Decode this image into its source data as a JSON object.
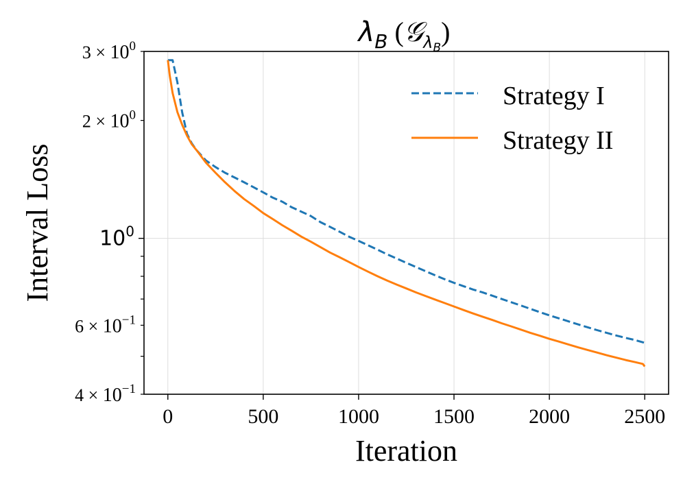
{
  "chart_data": {
    "type": "line",
    "title": "λ_B (𝒢_λB)",
    "title_parts": {
      "main": "λ",
      "main_sub": "B",
      "open": " (",
      "script": "𝒢",
      "script_sub": "λ",
      "script_subsub": "B",
      "close": ")"
    },
    "xlabel": "Iteration",
    "ylabel": "Interval Loss",
    "yscale": "log",
    "xlim": [
      -125,
      2625
    ],
    "ylim": [
      0.4,
      3.0
    ],
    "grid": true,
    "legend_position": "top-right",
    "x_ticks": [
      {
        "value": 0,
        "label": "0"
      },
      {
        "value": 500,
        "label": "500"
      },
      {
        "value": 1000,
        "label": "1000"
      },
      {
        "value": 1500,
        "label": "1500"
      },
      {
        "value": 2000,
        "label": "2000"
      },
      {
        "value": 2500,
        "label": "2500"
      }
    ],
    "y_major_ticks": [
      {
        "value": 1.0,
        "base": "10",
        "exp": "0"
      }
    ],
    "y_minor_labeled_ticks": [
      {
        "value": 3.0,
        "mant": "3 × ",
        "base": "10",
        "exp": "0"
      },
      {
        "value": 2.0,
        "mant": "2 × ",
        "base": "10",
        "exp": "0"
      },
      {
        "value": 0.6,
        "mant": "6 × ",
        "base": "10",
        "exp": "−1"
      },
      {
        "value": 0.4,
        "mant": "4 × ",
        "base": "10",
        "exp": "−1"
      }
    ],
    "y_minor_unlabeled_ticks": [
      0.5,
      0.7,
      0.8,
      0.9
    ],
    "series": [
      {
        "name": "Strategy I",
        "color": "#1f77b4",
        "dash": "dashed",
        "x": [
          0,
          25,
          50,
          75,
          100,
          125,
          150,
          200,
          250,
          300,
          350,
          400,
          450,
          500,
          550,
          600,
          650,
          700,
          750,
          800,
          850,
          900,
          950,
          1000,
          1050,
          1100,
          1150,
          1200,
          1250,
          1300,
          1350,
          1400,
          1450,
          1500,
          1550,
          1600,
          1650,
          1700,
          1750,
          1800,
          1850,
          1900,
          1950,
          2000,
          2050,
          2100,
          2150,
          2200,
          2250,
          2300,
          2350,
          2400,
          2450,
          2500
        ],
        "values": [
          2.85,
          2.85,
          2.5,
          2.1,
          1.85,
          1.75,
          1.68,
          1.58,
          1.52,
          1.47,
          1.43,
          1.39,
          1.35,
          1.31,
          1.27,
          1.24,
          1.2,
          1.17,
          1.14,
          1.1,
          1.07,
          1.04,
          1.01,
          0.985,
          0.96,
          0.935,
          0.91,
          0.888,
          0.866,
          0.845,
          0.825,
          0.805,
          0.787,
          0.77,
          0.755,
          0.74,
          0.728,
          0.714,
          0.7,
          0.687,
          0.674,
          0.661,
          0.648,
          0.636,
          0.625,
          0.614,
          0.603,
          0.593,
          0.583,
          0.574,
          0.565,
          0.557,
          0.55,
          0.541
        ]
      },
      {
        "name": "Strategy II",
        "color": "#ff7f0e",
        "dash": "solid",
        "x": [
          0,
          10,
          25,
          50,
          75,
          100,
          125,
          150,
          200,
          250,
          300,
          350,
          400,
          450,
          500,
          550,
          600,
          650,
          700,
          750,
          800,
          850,
          900,
          950,
          1000,
          1050,
          1100,
          1150,
          1200,
          1250,
          1300,
          1350,
          1400,
          1450,
          1500,
          1550,
          1600,
          1650,
          1700,
          1750,
          1800,
          1850,
          1900,
          1950,
          2000,
          2050,
          2100,
          2150,
          2200,
          2250,
          2300,
          2350,
          2400,
          2450,
          2490,
          2500
        ],
        "values": [
          2.85,
          2.6,
          2.35,
          2.1,
          1.95,
          1.83,
          1.74,
          1.68,
          1.56,
          1.47,
          1.39,
          1.32,
          1.26,
          1.21,
          1.16,
          1.12,
          1.08,
          1.045,
          1.01,
          0.98,
          0.95,
          0.92,
          0.895,
          0.87,
          0.845,
          0.822,
          0.8,
          0.78,
          0.762,
          0.745,
          0.728,
          0.713,
          0.698,
          0.684,
          0.67,
          0.656,
          0.643,
          0.631,
          0.619,
          0.607,
          0.596,
          0.585,
          0.574,
          0.564,
          0.554,
          0.545,
          0.536,
          0.527,
          0.519,
          0.511,
          0.503,
          0.496,
          0.489,
          0.483,
          0.478,
          0.471
        ]
      }
    ]
  }
}
